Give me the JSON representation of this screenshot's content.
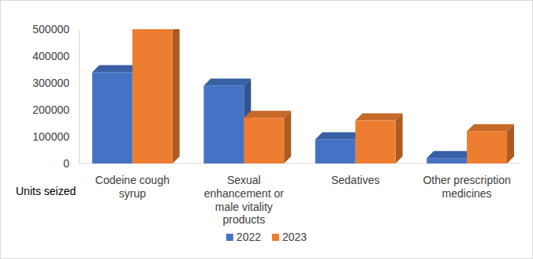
{
  "chart_data": {
    "type": "bar",
    "y_label": "Units seized",
    "categories": [
      "Codeine cough syrup",
      "Sexual enhancement or male vitality products",
      "Sedatives",
      "Other prescription medicines"
    ],
    "series": [
      {
        "name": "2022",
        "color": "#4472c4",
        "values": [
          340000,
          290000,
          90000,
          20000
        ]
      },
      {
        "name": "2023",
        "color": "#ed7d31",
        "values": [
          500000,
          170000,
          160000,
          120000
        ]
      }
    ],
    "ylim": [
      0,
      500000
    ],
    "yticks": [
      0,
      100000,
      200000,
      300000,
      400000,
      500000
    ],
    "grid": false,
    "legend": "bottom"
  }
}
